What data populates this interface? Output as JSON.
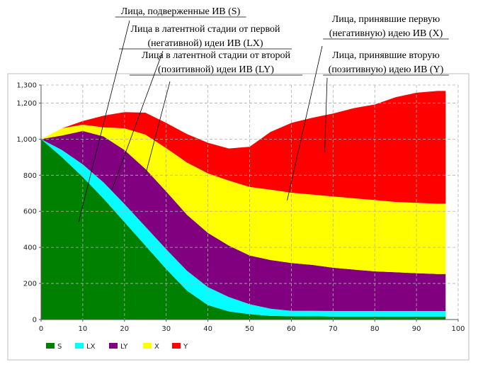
{
  "chart_data": {
    "type": "area",
    "stacked": true,
    "x": [
      0,
      5,
      10,
      15,
      20,
      25,
      30,
      35,
      40,
      45,
      50,
      55,
      60,
      65,
      70,
      75,
      80,
      85,
      90,
      95,
      97
    ],
    "series": [
      {
        "name": "S",
        "color": "#008000",
        "values": [
          1000,
          900,
          790,
          670,
          540,
          410,
          280,
          160,
          80,
          45,
          30,
          20,
          18,
          18,
          17,
          17,
          17,
          17,
          17,
          17,
          17
        ]
      },
      {
        "name": "LX",
        "color": "#00ffff",
        "values": [
          0,
          40,
          70,
          90,
          100,
          105,
          110,
          110,
          100,
          80,
          55,
          40,
          30,
          30,
          30,
          30,
          30,
          30,
          30,
          30,
          30
        ]
      },
      {
        "name": "LY",
        "color": "#800080",
        "values": [
          0,
          80,
          185,
          255,
          300,
          320,
          320,
          310,
          300,
          285,
          270,
          270,
          265,
          255,
          240,
          230,
          220,
          215,
          210,
          205,
          205
        ]
      },
      {
        "name": "X",
        "color": "#ffff00",
        "values": [
          0,
          40,
          35,
          50,
          120,
          190,
          240,
          290,
          330,
          360,
          380,
          390,
          390,
          390,
          395,
          395,
          395,
          390,
          390,
          390,
          390
        ]
      },
      {
        "name": "Y",
        "color": "#ff0000",
        "values": [
          0,
          0,
          20,
          65,
          90,
          122,
          140,
          158,
          170,
          178,
          223,
          320,
          387,
          425,
          460,
          500,
          530,
          580,
          610,
          625,
          625
        ]
      }
    ],
    "xlim": [
      0,
      100
    ],
    "ylim": [
      0,
      1300
    ],
    "x_ticks": [
      "0",
      "10",
      "20",
      "30",
      "40",
      "50",
      "60",
      "70",
      "80",
      "90",
      "100"
    ],
    "y_ticks": [
      "0",
      "200",
      "400",
      "600",
      "800",
      "1,000",
      "1,200",
      "1,300"
    ],
    "y_tick_values": [
      0,
      200,
      400,
      600,
      800,
      1000,
      1200,
      1300
    ],
    "grid": true,
    "legend_position": "bottom-left",
    "annotations": [
      {
        "id": "ann-s",
        "lines": [
          "Лица, подверженные ИВ (S)"
        ],
        "target": [
          9,
          540
        ]
      },
      {
        "id": "ann-lx",
        "lines": [
          "Лица в латентной стадии от первой",
          "(негативной) идеи ИВ (LX)"
        ],
        "target": [
          17,
          720
        ]
      },
      {
        "id": "ann-ly",
        "lines": [
          "Лица в латентной стадии от второй",
          "(позитивной) идеи ИВ  (LY)"
        ],
        "target": [
          25,
          800
        ]
      },
      {
        "id": "ann-x",
        "lines": [
          "Лица, принявшие первую",
          "(негативную) идею ИВ (X)"
        ],
        "target": [
          59,
          660
        ]
      },
      {
        "id": "ann-y",
        "lines": [
          "Лица, принявшие вторую",
          "(позитивную) идею ИВ (Y)"
        ],
        "target": [
          68,
          930
        ]
      }
    ]
  }
}
